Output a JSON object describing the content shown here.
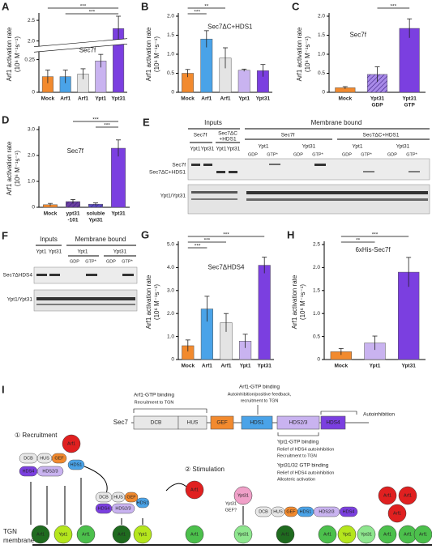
{
  "chart_data": [
    {
      "type": "bar",
      "panel": "A",
      "title": "Sec7f",
      "ylabel": [
        "Arf1 activation rate",
        "(10⁶ M⁻¹s⁻¹)"
      ],
      "categories": [
        "Mock",
        "Arf1",
        "Arf1",
        "Ypt1",
        "Ypt31"
      ],
      "values": [
        0.12,
        0.12,
        0.14,
        0.24,
        2.3
      ],
      "errors": [
        0.05,
        0.05,
        0.04,
        0.05,
        0.3
      ],
      "colors": [
        "#f28a2e",
        "#4aa3e8",
        "#e4e4e4",
        "#c9b3f0",
        "#7b3fe0"
      ],
      "ylim": [
        0,
        2.6
      ],
      "ybreak": [
        0.32,
        1.9
      ],
      "yticks": [
        0,
        0.25,
        {
          "value": 2,
          "label": "2.0"
        },
        2.5
      ],
      "significance": [
        {
          "pair": [
            0,
            4
          ],
          "label": "***"
        },
        {
          "pair": [
            1,
            4
          ],
          "label": "***"
        }
      ]
    },
    {
      "type": "bar",
      "panel": "B",
      "title": "Sec7ΔC+HDS1",
      "ylabel": [
        "Arf1 activation rate",
        "(10⁶ M⁻¹s⁻¹)"
      ],
      "categories": [
        "Mock",
        "Arf1",
        "Arf1",
        "Ypt1",
        "Ypt31"
      ],
      "values": [
        0.5,
        1.4,
        0.9,
        0.58,
        0.57
      ],
      "errors": [
        0.1,
        0.22,
        0.27,
        0.03,
        0.16
      ],
      "colors": [
        "#f28a2e",
        "#4aa3e8",
        "#e4e4e4",
        "#c9b3f0",
        "#7b3fe0"
      ],
      "ylim": [
        0,
        2.0
      ],
      "yticks": [
        0,
        0.5,
        {
          "value": 1,
          "label": "1.0"
        },
        1.5,
        {
          "value": 2,
          "label": "2.0"
        }
      ],
      "significance": [
        {
          "pair": [
            0,
            2
          ],
          "label": "**"
        },
        {
          "pair": [
            0,
            1
          ],
          "label": "***"
        }
      ]
    },
    {
      "type": "bar",
      "panel": "C",
      "title": "Sec7f",
      "ylabel": [
        "Arf1 activation rate",
        "(10⁶ M⁻¹s⁻¹)"
      ],
      "categories": [
        "Mock",
        [
          "Ypt31",
          "GDP"
        ],
        [
          "Ypt31",
          "GTP"
        ]
      ],
      "values": [
        0.12,
        0.47,
        1.68
      ],
      "errors": [
        0.03,
        0.2,
        0.25
      ],
      "colors": [
        "#f28a2e",
        "#a88ae8",
        "#7b3fe0"
      ],
      "hatched": [
        false,
        true,
        false
      ],
      "ylim": [
        0,
        2.0
      ],
      "yticks": [
        0,
        0.5,
        {
          "value": 1,
          "label": "1.0"
        },
        1.5,
        {
          "value": 2,
          "label": "2.0"
        }
      ],
      "significance": [
        {
          "pair": [
            1,
            2
          ],
          "label": "***"
        }
      ]
    },
    {
      "type": "bar",
      "panel": "D",
      "title": "Sec7f",
      "ylabel": [
        "Arf1 activation rate",
        "(10⁶ M⁻¹s⁻¹)"
      ],
      "categories": [
        "Mock",
        [
          "ypt31",
          "-101"
        ],
        [
          "soluble",
          "Ypt31"
        ],
        "Ypt31"
      ],
      "values": [
        0.1,
        0.22,
        0.12,
        2.28
      ],
      "errors": [
        0.05,
        0.08,
        0.05,
        0.32
      ],
      "colors": [
        "#f28a2e",
        "#6a3fa0",
        "#5a4fc0",
        "#7b3fe0"
      ],
      "hatched": [
        false,
        true,
        true,
        false
      ],
      "ylim": [
        0,
        3.0
      ],
      "yticks": [
        0,
        {
          "value": 1,
          "label": "1.0"
        },
        {
          "value": 2,
          "label": "2.0"
        },
        {
          "value": 3,
          "label": "3.0"
        }
      ],
      "significance": [
        {
          "pair": [
            1,
            3
          ],
          "label": "***"
        },
        {
          "pair": [
            2,
            3
          ],
          "label": "***"
        }
      ]
    },
    {
      "type": "bar",
      "panel": "G",
      "title": "Sec7ΔHDS4",
      "ylabel": [
        "Arf1 activation rate",
        "(10⁶ M⁻¹s⁻¹)"
      ],
      "categories": [
        "Mock",
        "Arf1",
        "Arf1",
        "Ypt1",
        "Ypt31"
      ],
      "values": [
        0.6,
        2.2,
        1.6,
        0.8,
        4.1
      ],
      "errors": [
        0.25,
        0.55,
        0.4,
        0.3,
        0.35
      ],
      "colors": [
        "#f28a2e",
        "#4aa3e8",
        "#e4e4e4",
        "#c9b3f0",
        "#7b3fe0"
      ],
      "ylim": [
        0,
        5.0
      ],
      "yticks": [
        0,
        {
          "value": 1,
          "label": "1.0"
        },
        {
          "value": 2,
          "label": "2.0"
        },
        {
          "value": 3,
          "label": "3.0"
        },
        {
          "value": 4,
          "label": "4.0"
        },
        {
          "value": 5,
          "label": "5.0"
        }
      ],
      "significance": [
        {
          "pair": [
            0,
            4
          ],
          "label": "***"
        },
        {
          "pair": [
            0,
            2
          ],
          "label": "***"
        },
        {
          "pair": [
            0,
            1
          ],
          "label": "***"
        }
      ]
    },
    {
      "type": "bar",
      "panel": "H",
      "title": "6xHis-Sec7f",
      "ylabel": [
        "Arf1 activation rate",
        "(10⁶ M⁻¹s⁻¹)"
      ],
      "categories": [
        "Mock",
        "Ypt1",
        "Ypt31"
      ],
      "values": [
        0.17,
        0.36,
        1.9
      ],
      "errors": [
        0.07,
        0.15,
        0.32
      ],
      "colors": [
        "#f28a2e",
        "#c9b3f0",
        "#7b3fe0"
      ],
      "ylim": [
        0,
        2.5
      ],
      "yticks": [
        0,
        0.5,
        {
          "value": 1,
          "label": "1.0"
        },
        1.5,
        {
          "value": 2,
          "label": "2.0"
        },
        2.5
      ],
      "significance": [
        {
          "pair": [
            0,
            2
          ],
          "label": "***"
        },
        {
          "pair": [
            0,
            1
          ],
          "label": "**"
        }
      ]
    }
  ],
  "blot_e": {
    "panel": "E",
    "inputs": "Inputs",
    "membrane": "Membrane bound",
    "input_constructs": [
      "Sec7f",
      [
        "Sec7ΔC",
        "+HDS1"
      ]
    ],
    "membrane_constructs": [
      "Sec7f",
      "Sec7ΔC+HDS1"
    ],
    "lanes": [
      "Ypt1",
      "Ypt31"
    ],
    "nucleotides": [
      "GDP",
      "GTP*"
    ],
    "rows": [
      "Sec7f",
      "Sec7ΔC+HDS1",
      "Ypt1/Ypt31"
    ]
  },
  "blot_f": {
    "panel": "F",
    "inputs": "Inputs",
    "membrane": "Membrane bound",
    "lanes": [
      "Ypt1",
      "Ypt31"
    ],
    "nucleotides": [
      "GDP",
      "GTP*"
    ],
    "rows": [
      "Sec7ΔHDS4",
      "Ypt1/Ypt31"
    ]
  },
  "diagram": {
    "panel": "I",
    "protein": "Sec7",
    "domains": [
      "DCB",
      "HUS",
      "GEF",
      "HDS1",
      "HDS2/3",
      "HDS4"
    ],
    "annotations": [
      [
        "Arf1-GTP binding",
        "Recruitment to TGN"
      ],
      [
        "Arf1-GTP binding",
        "Autoinhibition/positive feedback,",
        "recruitment to TGN"
      ],
      [
        "Autoinhibition"
      ],
      [
        "Ypt1-GTP binding",
        "Relief of HDS4 autoinhibition",
        "Recruitment to TGN"
      ],
      [
        "Ypt31/32 GTP binding",
        "Relief of HDS4 autoinhibition",
        "Allosteric activation"
      ]
    ],
    "steps": [
      "① Recruitment",
      "② Stimulation"
    ],
    "gef_question": [
      "Ypt31",
      "GEF?"
    ],
    "membrane": [
      "TGN",
      "membrane"
    ],
    "arf1": "Arf1",
    "ypt1": "Ypt1",
    "ypt31": "Ypt31"
  }
}
